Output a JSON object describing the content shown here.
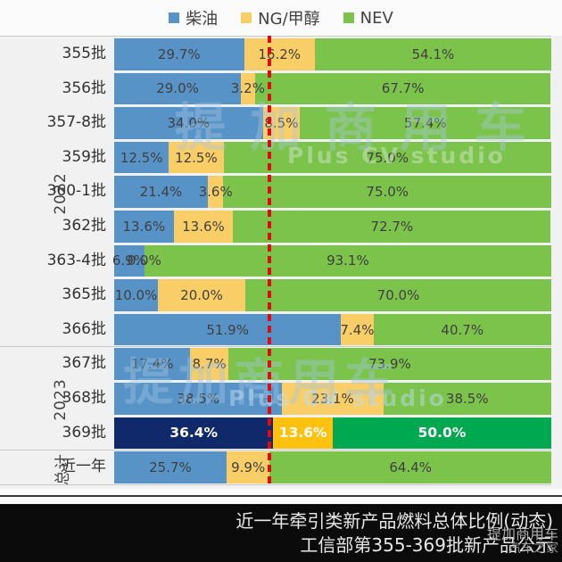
{
  "legend": {
    "items": [
      {
        "label": "柴油",
        "color": "#5893C7"
      },
      {
        "label": "NG/甲醇",
        "color": "#FACE66"
      },
      {
        "label": "NEV",
        "color": "#7CC34B"
      }
    ]
  },
  "groups": [
    {
      "label": "2022",
      "span": 9
    },
    {
      "label": "2023",
      "span": 3
    },
    {
      "label": "总计",
      "span": 1
    }
  ],
  "colors": {
    "series": [
      "#5893C7",
      "#FACE66",
      "#7CC34B"
    ],
    "highlight": [
      "#10296B",
      "#FEC20E",
      "#00A94F"
    ],
    "value_label": "#3F3F3F",
    "highlight_value_label": "#FFFFFF",
    "reference_line": "#DF0B12",
    "background": "#F1F1F1",
    "footer_background": "#0B0B0B"
  },
  "chart_data": {
    "type": "bar",
    "orientation": "horizontal-stacked",
    "stacked": true,
    "unit": "%",
    "title": "近一年牵引类新产品燃料总体比例(动态)",
    "subtitle": "工信部第355-369批新产品公示",
    "legend_position": "top",
    "xlim": [
      0,
      100
    ],
    "categories": [
      "355批",
      "356批",
      "357-8批",
      "359批",
      "360-1批",
      "362批",
      "363-4批",
      "365批",
      "366批",
      "367批",
      "368批",
      "369批",
      "近一年"
    ],
    "series": [
      {
        "name": "柴油",
        "key": "diesel",
        "values": [
          29.7,
          29.0,
          34.0,
          12.5,
          21.4,
          13.6,
          6.9,
          10.0,
          51.9,
          17.4,
          38.5,
          36.4,
          25.7
        ]
      },
      {
        "name": "NG/甲醇",
        "key": "ng-methanol",
        "values": [
          16.2,
          3.2,
          8.5,
          12.5,
          3.6,
          13.6,
          0.0,
          20.0,
          7.4,
          8.7,
          23.1,
          13.6,
          9.9
        ]
      },
      {
        "name": "NEV",
        "key": "nev",
        "values": [
          54.1,
          67.7,
          57.4,
          75.0,
          75.0,
          72.7,
          93.1,
          70.0,
          40.7,
          73.9,
          38.5,
          50.0,
          64.4
        ]
      }
    ],
    "highlight_index": 11,
    "reference_line_pct": 35.6
  },
  "footer": {
    "line1": "近一年牵引类新产品燃料总体比例(动态)",
    "line2": "工信部第355-369批新产品公示"
  },
  "watermarks": {
    "top_cn": "提加商用车",
    "top_en": "Plus CV studio",
    "center_cn": "提加商用车",
    "center_en": "Plus CV studio",
    "corner_cn": "提加商用车",
    "corner_site": "汽车之家"
  }
}
